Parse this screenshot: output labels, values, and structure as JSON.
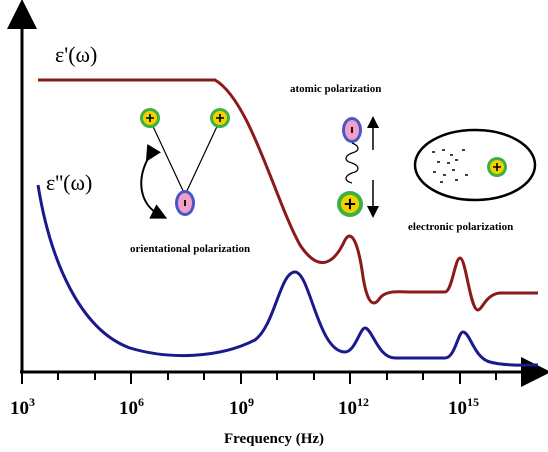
{
  "curves": {
    "real_label": "ε'(ω)",
    "imag_label": "ε''(ω)"
  },
  "annotations": {
    "atomic": "atomic polarization",
    "orientational": "orientational polarization",
    "electronic": "electronic polarization"
  },
  "x_axis": {
    "label": "Frequency (Hz)",
    "ticks": [
      {
        "base": "10",
        "exponent": "3"
      },
      {
        "base": "10",
        "exponent": "6"
      },
      {
        "base": "10",
        "exponent": "9"
      },
      {
        "base": "10",
        "exponent": "12"
      },
      {
        "base": "10",
        "exponent": "15"
      }
    ]
  }
}
